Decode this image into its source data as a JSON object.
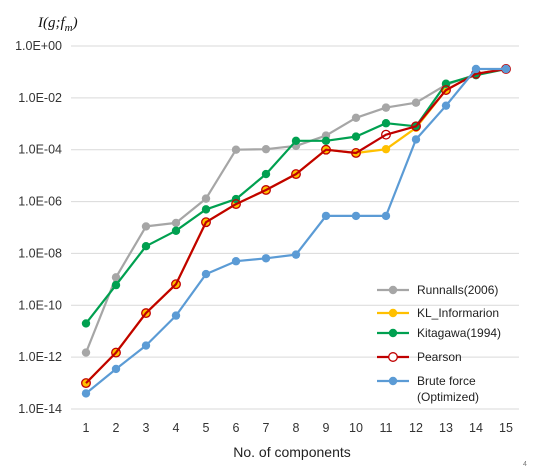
{
  "chart_data": {
    "type": "line",
    "ylabel_prefix": "I(g;f",
    "ylabel_sub": "m",
    "ylabel_suffix": ")",
    "xlabel": "No. of components",
    "x": [
      1,
      2,
      3,
      4,
      5,
      6,
      7,
      8,
      9,
      10,
      11,
      12,
      13,
      14,
      15
    ],
    "y_scale": "log",
    "ylim": [
      1e-14,
      1
    ],
    "y_ticks": [
      "1.0E-14",
      "1.0E-12",
      "1.0E-10",
      "1.0E-08",
      "1.0E-06",
      "1.0E-04",
      "1.0E-02",
      "1.0E+00"
    ],
    "x_ticks": [
      "1",
      "2",
      "3",
      "4",
      "5",
      "6",
      "7",
      "8",
      "9",
      "10",
      "11",
      "12",
      "13",
      "14",
      "15"
    ],
    "grid": "horizontal",
    "legend_position": "bottom-right",
    "series": [
      {
        "name": "Runnalls(2006)",
        "color": "#a6a6a6",
        "marker": "filled-circle",
        "values": [
          1.5e-12,
          1.2e-09,
          1.1e-07,
          1.5e-07,
          1.3e-06,
          0.0001,
          0.000105,
          0.00014,
          0.00035,
          0.0017,
          0.0042,
          0.0065,
          0.032,
          0.08,
          0.13
        ]
      },
      {
        "name": "KL_Informarion",
        "color": "#ffc000",
        "marker": "filled-circle",
        "values": [
          1e-13,
          1.5e-12,
          5e-11,
          6.5e-10,
          1.6e-07,
          8e-07,
          2.8e-06,
          1.15e-05,
          0.0001,
          7.5e-05,
          0.000105,
          0.0007,
          0.02,
          0.085,
          0.13
        ]
      },
      {
        "name": "Kitagawa(1994)",
        "color": "#00a050",
        "marker": "filled-circle",
        "values": [
          2e-11,
          6e-10,
          1.9e-08,
          7.5e-08,
          5e-07,
          1.25e-06,
          1.15e-05,
          0.00022,
          0.00022,
          0.00032,
          0.00105,
          0.0008,
          0.035,
          0.075,
          0.13
        ]
      },
      {
        "name": "Pearson",
        "color": "#c00000",
        "marker": "open-circle",
        "values": [
          1e-13,
          1.5e-12,
          5e-11,
          6.5e-10,
          1.6e-07,
          8e-07,
          2.8e-06,
          1.15e-05,
          0.0001,
          7.5e-05,
          0.00038,
          0.0008,
          0.02,
          0.085,
          0.13
        ]
      },
      {
        "name": "Brute force\n(Optimized)",
        "color": "#5b9bd5",
        "marker": "filled-circle",
        "values": [
          4e-14,
          3.5e-13,
          2.8e-12,
          4e-11,
          1.6e-09,
          5e-09,
          6.5e-09,
          9e-09,
          2.8e-07,
          2.8e-07,
          2.8e-07,
          0.00025,
          0.005,
          0.13,
          0.13
        ]
      }
    ]
  },
  "page_number": "4"
}
